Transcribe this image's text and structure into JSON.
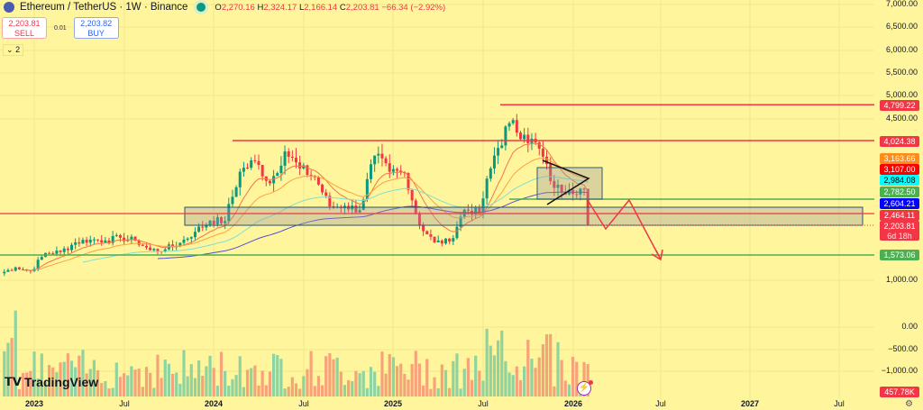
{
  "header": {
    "symbol": "Ethereum / TetherUS · 1W · Binance",
    "open_label": "O",
    "open": "2,270.16",
    "high_label": "H",
    "high": "2,324.17",
    "low_label": "L",
    "low": "2,166.14",
    "close_label": "C",
    "close": "2,203.81",
    "change": "−66.34 (−2.92%)"
  },
  "trade": {
    "sell_price": "2,203.81",
    "sell_label": "SELL",
    "spread": "0.01",
    "buy_price": "2,203.82",
    "buy_label": "BUY"
  },
  "indicators_collapse": {
    "icon": "chevron-down-icon",
    "count": "2"
  },
  "price_axis": [
    "7,000.00",
    "6,500.00",
    "6,000.00",
    "5,500.00",
    "5,000.00",
    "4,500.00",
    "1,000.00"
  ],
  "volume_axis": [
    "0.00",
    "−500.00",
    "−1,000.00"
  ],
  "price_tags": [
    {
      "value": "4,799.22",
      "color": "#f23645"
    },
    {
      "value": "4,024.38",
      "color": "#f23645"
    },
    {
      "value": "3,163.66",
      "color": "#ff8c1a"
    },
    {
      "value": "3,107.00",
      "color": "#ff0000"
    },
    {
      "value": "2,984.08",
      "color": "#00ffff"
    },
    {
      "value": "2,782.50",
      "color": "#4caf50"
    },
    {
      "value": "2,604.21",
      "color": "#0000ff"
    },
    {
      "value": "2,464.11",
      "color": "#f23645"
    },
    {
      "value": "2,203.81",
      "color": "#f23645",
      "countdown": "6d 18h"
    },
    {
      "value": "1,573.06",
      "color": "#4caf50"
    }
  ],
  "volume_tag": {
    "value": "457.78K",
    "color": "#f23645"
  },
  "time_axis": [
    "2023",
    "Jul",
    "2024",
    "Jul",
    "2025",
    "Jul",
    "2026",
    "Jul",
    "2027",
    "Jul"
  ],
  "monthly_closes": [
    1280,
    1200,
    1590,
    1610,
    1820,
    1880,
    1860,
    1920,
    1860,
    1650,
    1670,
    1810,
    2050,
    2290,
    2280,
    3350,
    3580,
    3100,
    3790,
    3420,
    3230,
    2600,
    2610,
    2520,
    3700,
    3350,
    3320,
    2200,
    1820,
    1840,
    2530,
    2480,
    3700,
    4400,
    4150,
    3850,
    3000,
    2960,
    2980,
    2203.81
  ],
  "levels": {
    "resistance_high": 4799.22,
    "resistance_mid": 4024.38,
    "support_green": 2782.5,
    "support_red": 2464.11,
    "support_low": 1573.06
  },
  "colors": {
    "up": "#089981",
    "down": "#f23645",
    "background": "#fff59d"
  },
  "branding": {
    "name": "TradingView"
  }
}
